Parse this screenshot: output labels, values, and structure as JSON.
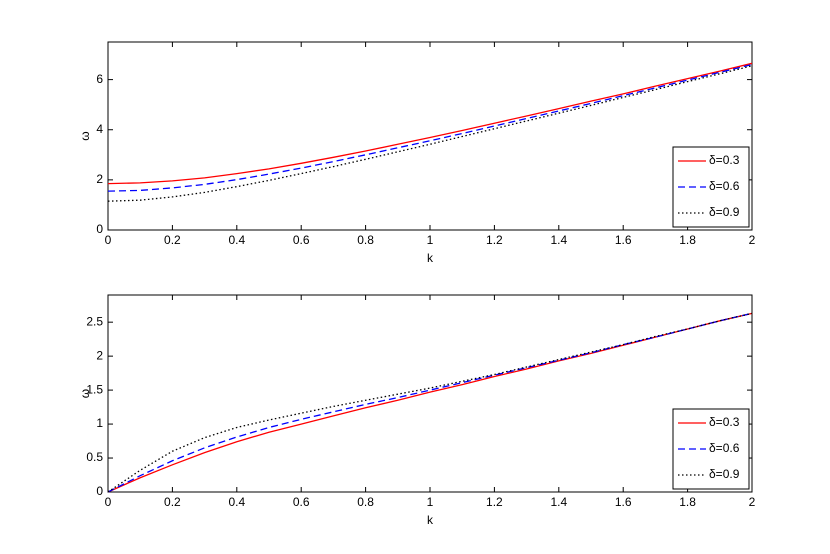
{
  "chart_data": [
    {
      "type": "line",
      "xlabel": "k",
      "ylabel": "ω",
      "x": [
        0,
        0.1,
        0.2,
        0.3,
        0.4,
        0.5,
        0.6,
        0.7,
        0.8,
        0.9,
        1,
        1.1,
        1.2,
        1.3,
        1.4,
        1.5,
        1.6,
        1.7,
        1.8,
        1.9,
        2
      ],
      "xlim": [
        0,
        2
      ],
      "ylim": [
        0,
        7.5
      ],
      "xticks": [
        0,
        0.2,
        0.4,
        0.6,
        0.8,
        1,
        1.2,
        1.4,
        1.6,
        1.8,
        2
      ],
      "yticks": [
        0,
        2,
        4,
        6
      ],
      "legend": "lower right",
      "series": [
        {
          "name": "δ=0.3",
          "color": "#ff0000",
          "dash": "solid",
          "values": [
            1.85,
            1.88,
            1.96,
            2.08,
            2.25,
            2.44,
            2.66,
            2.9,
            3.15,
            3.42,
            3.69,
            3.97,
            4.26,
            4.55,
            4.84,
            5.14,
            5.43,
            5.74,
            6.04,
            6.34,
            6.65
          ]
        },
        {
          "name": "δ=0.6",
          "color": "#0000ff",
          "dash": "dashed",
          "values": [
            1.55,
            1.58,
            1.68,
            1.82,
            2.01,
            2.23,
            2.47,
            2.73,
            3.0,
            3.28,
            3.56,
            3.85,
            4.15,
            4.45,
            4.75,
            5.05,
            5.36,
            5.67,
            5.98,
            6.29,
            6.6
          ]
        },
        {
          "name": "δ=0.9",
          "color": "#000000",
          "dash": "dotted",
          "values": [
            1.15,
            1.19,
            1.32,
            1.5,
            1.73,
            1.98,
            2.25,
            2.53,
            2.82,
            3.12,
            3.42,
            3.73,
            4.04,
            4.35,
            4.66,
            4.97,
            5.29,
            5.6,
            5.92,
            6.23,
            6.55
          ]
        }
      ]
    },
    {
      "type": "line",
      "xlabel": "k",
      "ylabel": "ω",
      "x": [
        0,
        0.1,
        0.2,
        0.3,
        0.4,
        0.5,
        0.6,
        0.7,
        0.8,
        0.9,
        1,
        1.1,
        1.2,
        1.3,
        1.4,
        1.5,
        1.6,
        1.7,
        1.8,
        1.9,
        2
      ],
      "xlim": [
        0,
        2
      ],
      "ylim": [
        0,
        2.9
      ],
      "xticks": [
        0,
        0.2,
        0.4,
        0.6,
        0.8,
        1,
        1.2,
        1.4,
        1.6,
        1.8,
        2
      ],
      "yticks": [
        0,
        0.5,
        1,
        1.5,
        2,
        2.5
      ],
      "legend": "lower right",
      "series": [
        {
          "name": "δ=0.3",
          "color": "#ff0000",
          "dash": "solid",
          "values": [
            0,
            0.21,
            0.4,
            0.58,
            0.74,
            0.88,
            1.0,
            1.12,
            1.24,
            1.35,
            1.47,
            1.58,
            1.7,
            1.81,
            1.93,
            2.04,
            2.16,
            2.28,
            2.4,
            2.52,
            2.63
          ]
        },
        {
          "name": "δ=0.6",
          "color": "#0000ff",
          "dash": "dashed",
          "values": [
            0,
            0.24,
            0.46,
            0.65,
            0.81,
            0.95,
            1.07,
            1.18,
            1.29,
            1.39,
            1.5,
            1.61,
            1.72,
            1.83,
            1.94,
            2.05,
            2.17,
            2.28,
            2.4,
            2.52,
            2.63
          ]
        },
        {
          "name": "δ=0.9",
          "color": "#000000",
          "dash": "dotted",
          "values": [
            0,
            0.32,
            0.6,
            0.8,
            0.95,
            1.06,
            1.16,
            1.26,
            1.35,
            1.44,
            1.53,
            1.63,
            1.73,
            1.84,
            1.95,
            2.06,
            2.17,
            2.29,
            2.4,
            2.52,
            2.63
          ]
        }
      ]
    }
  ]
}
